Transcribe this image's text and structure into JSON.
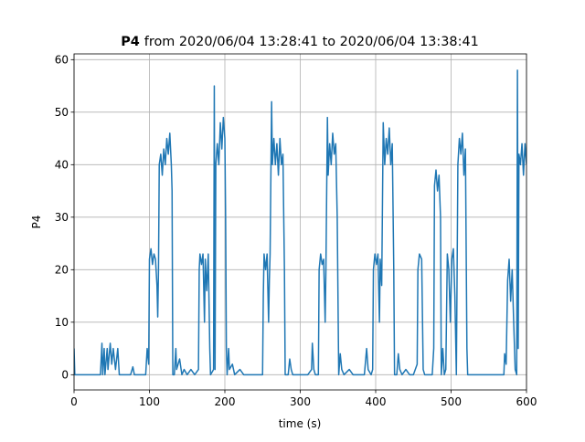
{
  "chart_data": {
    "type": "line",
    "title": {
      "bold": "P4",
      "text": "from 2020/06/04 13:28:41 to 2020/06/04 13:38:41"
    },
    "xlabel": "time (s)",
    "ylabel": "P4",
    "color": "#1f77b4",
    "grid": true,
    "xlim": [
      0,
      600
    ],
    "xticks": [
      0,
      100,
      200,
      300,
      400,
      500,
      600
    ],
    "ylim": [
      -2.9,
      61.1
    ],
    "yticks": [
      0,
      10,
      20,
      30,
      40,
      50,
      60
    ],
    "x": [
      0,
      1,
      3,
      35,
      37,
      38,
      40,
      41,
      44,
      45,
      48,
      50,
      52,
      55,
      58,
      60,
      75,
      78,
      80,
      95,
      97,
      99,
      100,
      102,
      104,
      106,
      108,
      110,
      111,
      112,
      113,
      115,
      117,
      119,
      121,
      123,
      125,
      127,
      129,
      130,
      131,
      133,
      135,
      136,
      140,
      143,
      146,
      150,
      155,
      160,
      165,
      166,
      167,
      169,
      171,
      173,
      174,
      176,
      178,
      180,
      181,
      185,
      186,
      187,
      188,
      190,
      192,
      194,
      196,
      198,
      200,
      201,
      202,
      203,
      205,
      206,
      210,
      213,
      220,
      225,
      240,
      250,
      251,
      252,
      254,
      256,
      258,
      259,
      260,
      262,
      263,
      265,
      267,
      269,
      271,
      273,
      275,
      277,
      279,
      280,
      284,
      286,
      288,
      290,
      300,
      310,
      315,
      316,
      318,
      320,
      324,
      325,
      327,
      329,
      331,
      333,
      334,
      336,
      337,
      339,
      341,
      343,
      345,
      347,
      349,
      351,
      353,
      355,
      358,
      365,
      370,
      378,
      385,
      388,
      390,
      394,
      396,
      397,
      399,
      401,
      403,
      405,
      406,
      408,
      410,
      412,
      414,
      416,
      418,
      420,
      422,
      424,
      425,
      428,
      430,
      432,
      435,
      440,
      445,
      450,
      455,
      456,
      458,
      461,
      463,
      465,
      470,
      475,
      477,
      478,
      480,
      482,
      484,
      486,
      487,
      489,
      491,
      493,
      495,
      497,
      499,
      501,
      503,
      505,
      507,
      509,
      511,
      513,
      515,
      517,
      519,
      521,
      522,
      530,
      540,
      560,
      570,
      571,
      573,
      575,
      577,
      579,
      581,
      583,
      585,
      587,
      588,
      589,
      590,
      592,
      594,
      596,
      598,
      600
    ],
    "values": [
      5,
      0,
      0,
      0,
      6,
      0,
      5,
      0,
      5,
      1,
      6,
      2,
      5,
      1,
      5,
      0,
      0,
      1.5,
      0,
      0,
      5,
      2,
      22,
      24,
      21,
      23,
      22,
      17,
      11,
      20,
      40,
      42,
      38,
      43,
      40,
      45,
      42,
      46,
      40,
      35,
      0,
      0,
      5,
      1,
      3,
      0,
      1,
      0,
      1,
      0,
      1,
      20,
      23,
      21,
      23,
      10,
      22,
      16,
      23,
      5,
      0,
      1,
      55,
      1,
      40,
      44,
      40,
      48,
      43,
      49,
      45,
      30,
      5,
      0,
      5,
      1,
      2,
      0,
      1,
      0,
      0,
      0,
      15,
      23,
      20,
      23,
      10,
      18,
      23,
      52,
      40,
      45,
      40,
      44,
      38,
      45,
      40,
      42,
      20,
      0,
      0,
      3,
      1,
      0,
      0,
      0,
      1,
      6,
      1,
      0,
      0,
      20,
      23,
      21,
      22,
      10,
      20,
      49,
      38,
      44,
      40,
      46,
      42,
      44,
      30,
      0,
      4,
      1,
      0,
      1,
      0,
      0,
      0,
      5,
      1,
      0,
      1,
      20,
      23,
      21,
      23,
      10,
      22,
      17,
      48,
      40,
      45,
      42,
      47,
      40,
      44,
      20,
      0,
      0,
      4,
      1,
      0,
      1,
      0,
      0,
      2,
      20,
      23,
      22,
      1,
      0,
      0,
      0,
      5,
      36,
      39,
      35,
      38,
      30,
      0,
      5,
      0,
      1,
      23,
      20,
      10,
      22,
      24,
      15,
      0,
      40,
      45,
      42,
      46,
      38,
      43,
      5,
      0,
      0,
      0,
      0,
      0,
      4,
      2,
      18,
      22,
      14,
      20,
      10,
      1,
      0,
      58,
      5,
      42,
      40,
      44,
      38,
      44,
      40
    ]
  }
}
